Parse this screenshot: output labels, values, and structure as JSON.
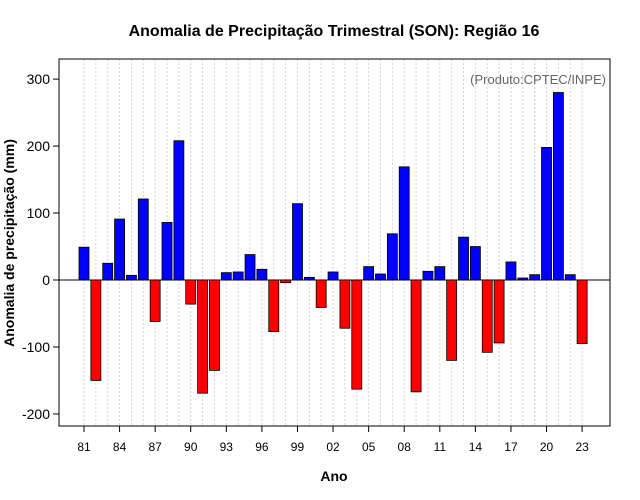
{
  "chart_data": {
    "type": "bar",
    "title": "Anomalia de Precipitação Trimestral (SON): Região 16",
    "xlabel": "Ano",
    "ylabel": "Anomalia de precipitação (mm)",
    "credit": "(Produto:CPTEC/INPE)",
    "years": [
      1981,
      1982,
      1983,
      1984,
      1985,
      1986,
      1987,
      1988,
      1989,
      1990,
      1991,
      1992,
      1993,
      1994,
      1995,
      1996,
      1997,
      1998,
      1999,
      2000,
      2001,
      2002,
      2003,
      2004,
      2005,
      2006,
      2007,
      2008,
      2009,
      2010,
      2011,
      2012,
      2013,
      2014,
      2015,
      2016,
      2017,
      2018,
      2019,
      2020,
      2021,
      2022,
      2023
    ],
    "values": [
      49,
      -150,
      25,
      91,
      7,
      121,
      -62,
      86,
      208,
      -36,
      -169,
      -135,
      11,
      12,
      38,
      16,
      -77,
      -4,
      114,
      4,
      -41,
      12,
      -72,
      -163,
      20,
      9,
      69,
      169,
      -167,
      13,
      20,
      -120,
      64,
      50,
      -108,
      -94,
      27,
      3,
      8,
      198,
      280,
      8,
      -95
    ],
    "tick_labels": [
      "81",
      "84",
      "87",
      "90",
      "93",
      "96",
      "99",
      "02",
      "05",
      "08",
      "11",
      "14",
      "17",
      "20",
      "23"
    ],
    "tick_years": [
      1981,
      1984,
      1987,
      1990,
      1993,
      1996,
      1999,
      2002,
      2005,
      2008,
      2011,
      2014,
      2017,
      2020,
      2023
    ],
    "yticks": [
      -200,
      -100,
      0,
      100,
      200,
      300
    ],
    "ylim": [
      -218,
      330
    ],
    "colors": {
      "positive": "#0000ff",
      "negative": "#ff0000",
      "grid": "#d3d3d3",
      "axis": "#000000"
    },
    "grid": true
  }
}
